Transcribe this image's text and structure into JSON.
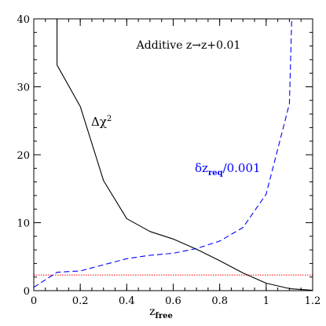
{
  "chart_data": {
    "type": "line",
    "title": "",
    "xlabel": "z",
    "xlabel_sub": "free",
    "ylabel": "",
    "xlim": [
      0,
      1.2
    ],
    "ylim": [
      0,
      40
    ],
    "xticks": [
      0,
      0.2,
      0.4,
      0.6,
      0.8,
      1,
      1.2
    ],
    "yticks": [
      0,
      10,
      20,
      30,
      40
    ],
    "x_minor_step": 0.05,
    "y_minor_step": 2,
    "grid": false,
    "annotation": "Additive z→z+0.01",
    "series": [
      {
        "name": "Δχ²",
        "label_main": "Δχ",
        "label_sup": "2",
        "color": "#000000",
        "style": "solid",
        "points": [
          [
            0.1,
            40
          ],
          [
            0.1,
            33.2
          ],
          [
            0.2,
            27.1
          ],
          [
            0.3,
            16.2
          ],
          [
            0.4,
            10.6
          ],
          [
            0.5,
            8.7
          ],
          [
            0.6,
            7.6
          ],
          [
            0.7,
            6.1
          ],
          [
            0.8,
            4.4
          ],
          [
            0.9,
            2.6
          ],
          [
            1.0,
            1.1
          ],
          [
            1.1,
            0.3
          ],
          [
            1.2,
            0.05
          ]
        ]
      },
      {
        "name": "δz_req/0.001",
        "label_main": "δz",
        "label_sub": "req",
        "label_tail": "/0.001",
        "color": "#0000ff",
        "style": "dashed",
        "points": [
          [
            0,
            0.5
          ],
          [
            0.1,
            2.7
          ],
          [
            0.2,
            2.9
          ],
          [
            0.3,
            3.8
          ],
          [
            0.4,
            4.7
          ],
          [
            0.5,
            5.2
          ],
          [
            0.6,
            5.5
          ],
          [
            0.7,
            6.2
          ],
          [
            0.8,
            7.3
          ],
          [
            0.9,
            9.3
          ],
          [
            1.0,
            14.2
          ],
          [
            1.1,
            27.5
          ],
          [
            1.11,
            40
          ]
        ]
      }
    ],
    "hlines": [
      {
        "y": 2.3,
        "color": "#ff0000",
        "style": "dotted"
      }
    ]
  }
}
